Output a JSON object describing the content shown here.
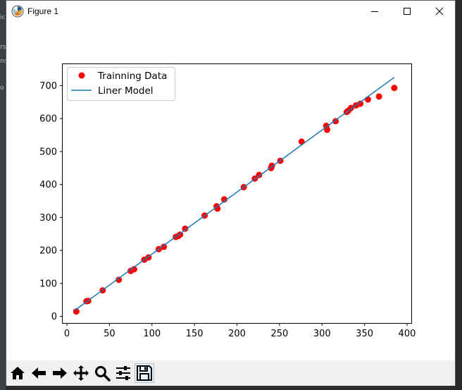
{
  "window": {
    "title": "Figure 1"
  },
  "toolbar": {
    "buttons": [
      {
        "name": "home-icon"
      },
      {
        "name": "back-arrow-icon"
      },
      {
        "name": "forward-arrow-icon"
      },
      {
        "name": "pan-icon"
      },
      {
        "name": "zoom-icon"
      },
      {
        "name": "configure-subplots-icon"
      },
      {
        "name": "save-icon"
      }
    ]
  },
  "chart_data": {
    "type": "scatter",
    "title": "",
    "xlabel": "",
    "ylabel": "",
    "xlim": [
      -5,
      405
    ],
    "ylim": [
      -20,
      765
    ],
    "xticks": [
      0,
      50,
      100,
      150,
      200,
      250,
      300,
      350,
      400
    ],
    "yticks": [
      0,
      100,
      200,
      300,
      400,
      500,
      600,
      700
    ],
    "grid": false,
    "legend_position": "top-left",
    "series": [
      {
        "name": "Trainning Data",
        "kind": "scatter",
        "color": "#ff0000",
        "points": [
          [
            11,
            15
          ],
          [
            23,
            46
          ],
          [
            25,
            47
          ],
          [
            42,
            79
          ],
          [
            61,
            111
          ],
          [
            75,
            138
          ],
          [
            79,
            143
          ],
          [
            91,
            172
          ],
          [
            96,
            179
          ],
          [
            108,
            204
          ],
          [
            114,
            211
          ],
          [
            128,
            241
          ],
          [
            131,
            244
          ],
          [
            133,
            248
          ],
          [
            139,
            266
          ],
          [
            162,
            306
          ],
          [
            176,
            334
          ],
          [
            177,
            327
          ],
          [
            185,
            355
          ],
          [
            208,
            392
          ],
          [
            221,
            418
          ],
          [
            226,
            429
          ],
          [
            240,
            450
          ],
          [
            241,
            457
          ],
          [
            251,
            472
          ],
          [
            276,
            530
          ],
          [
            305,
            578
          ],
          [
            306,
            566
          ],
          [
            316,
            592
          ],
          [
            329,
            620
          ],
          [
            331,
            624
          ],
          [
            334,
            632
          ],
          [
            340,
            640
          ],
          [
            345,
            645
          ],
          [
            354,
            658
          ],
          [
            367,
            667
          ],
          [
            385,
            693
          ]
        ]
      },
      {
        "name": "Liner Model",
        "kind": "line",
        "color": "#1f77b4",
        "points": [
          [
            9,
            18
          ],
          [
            385,
            725
          ]
        ]
      }
    ]
  },
  "colors": {
    "titlebar": "#ffffff",
    "toolbar": "#f0f0f0",
    "scatter": "#ff0000",
    "line": "#1f77b4"
  }
}
